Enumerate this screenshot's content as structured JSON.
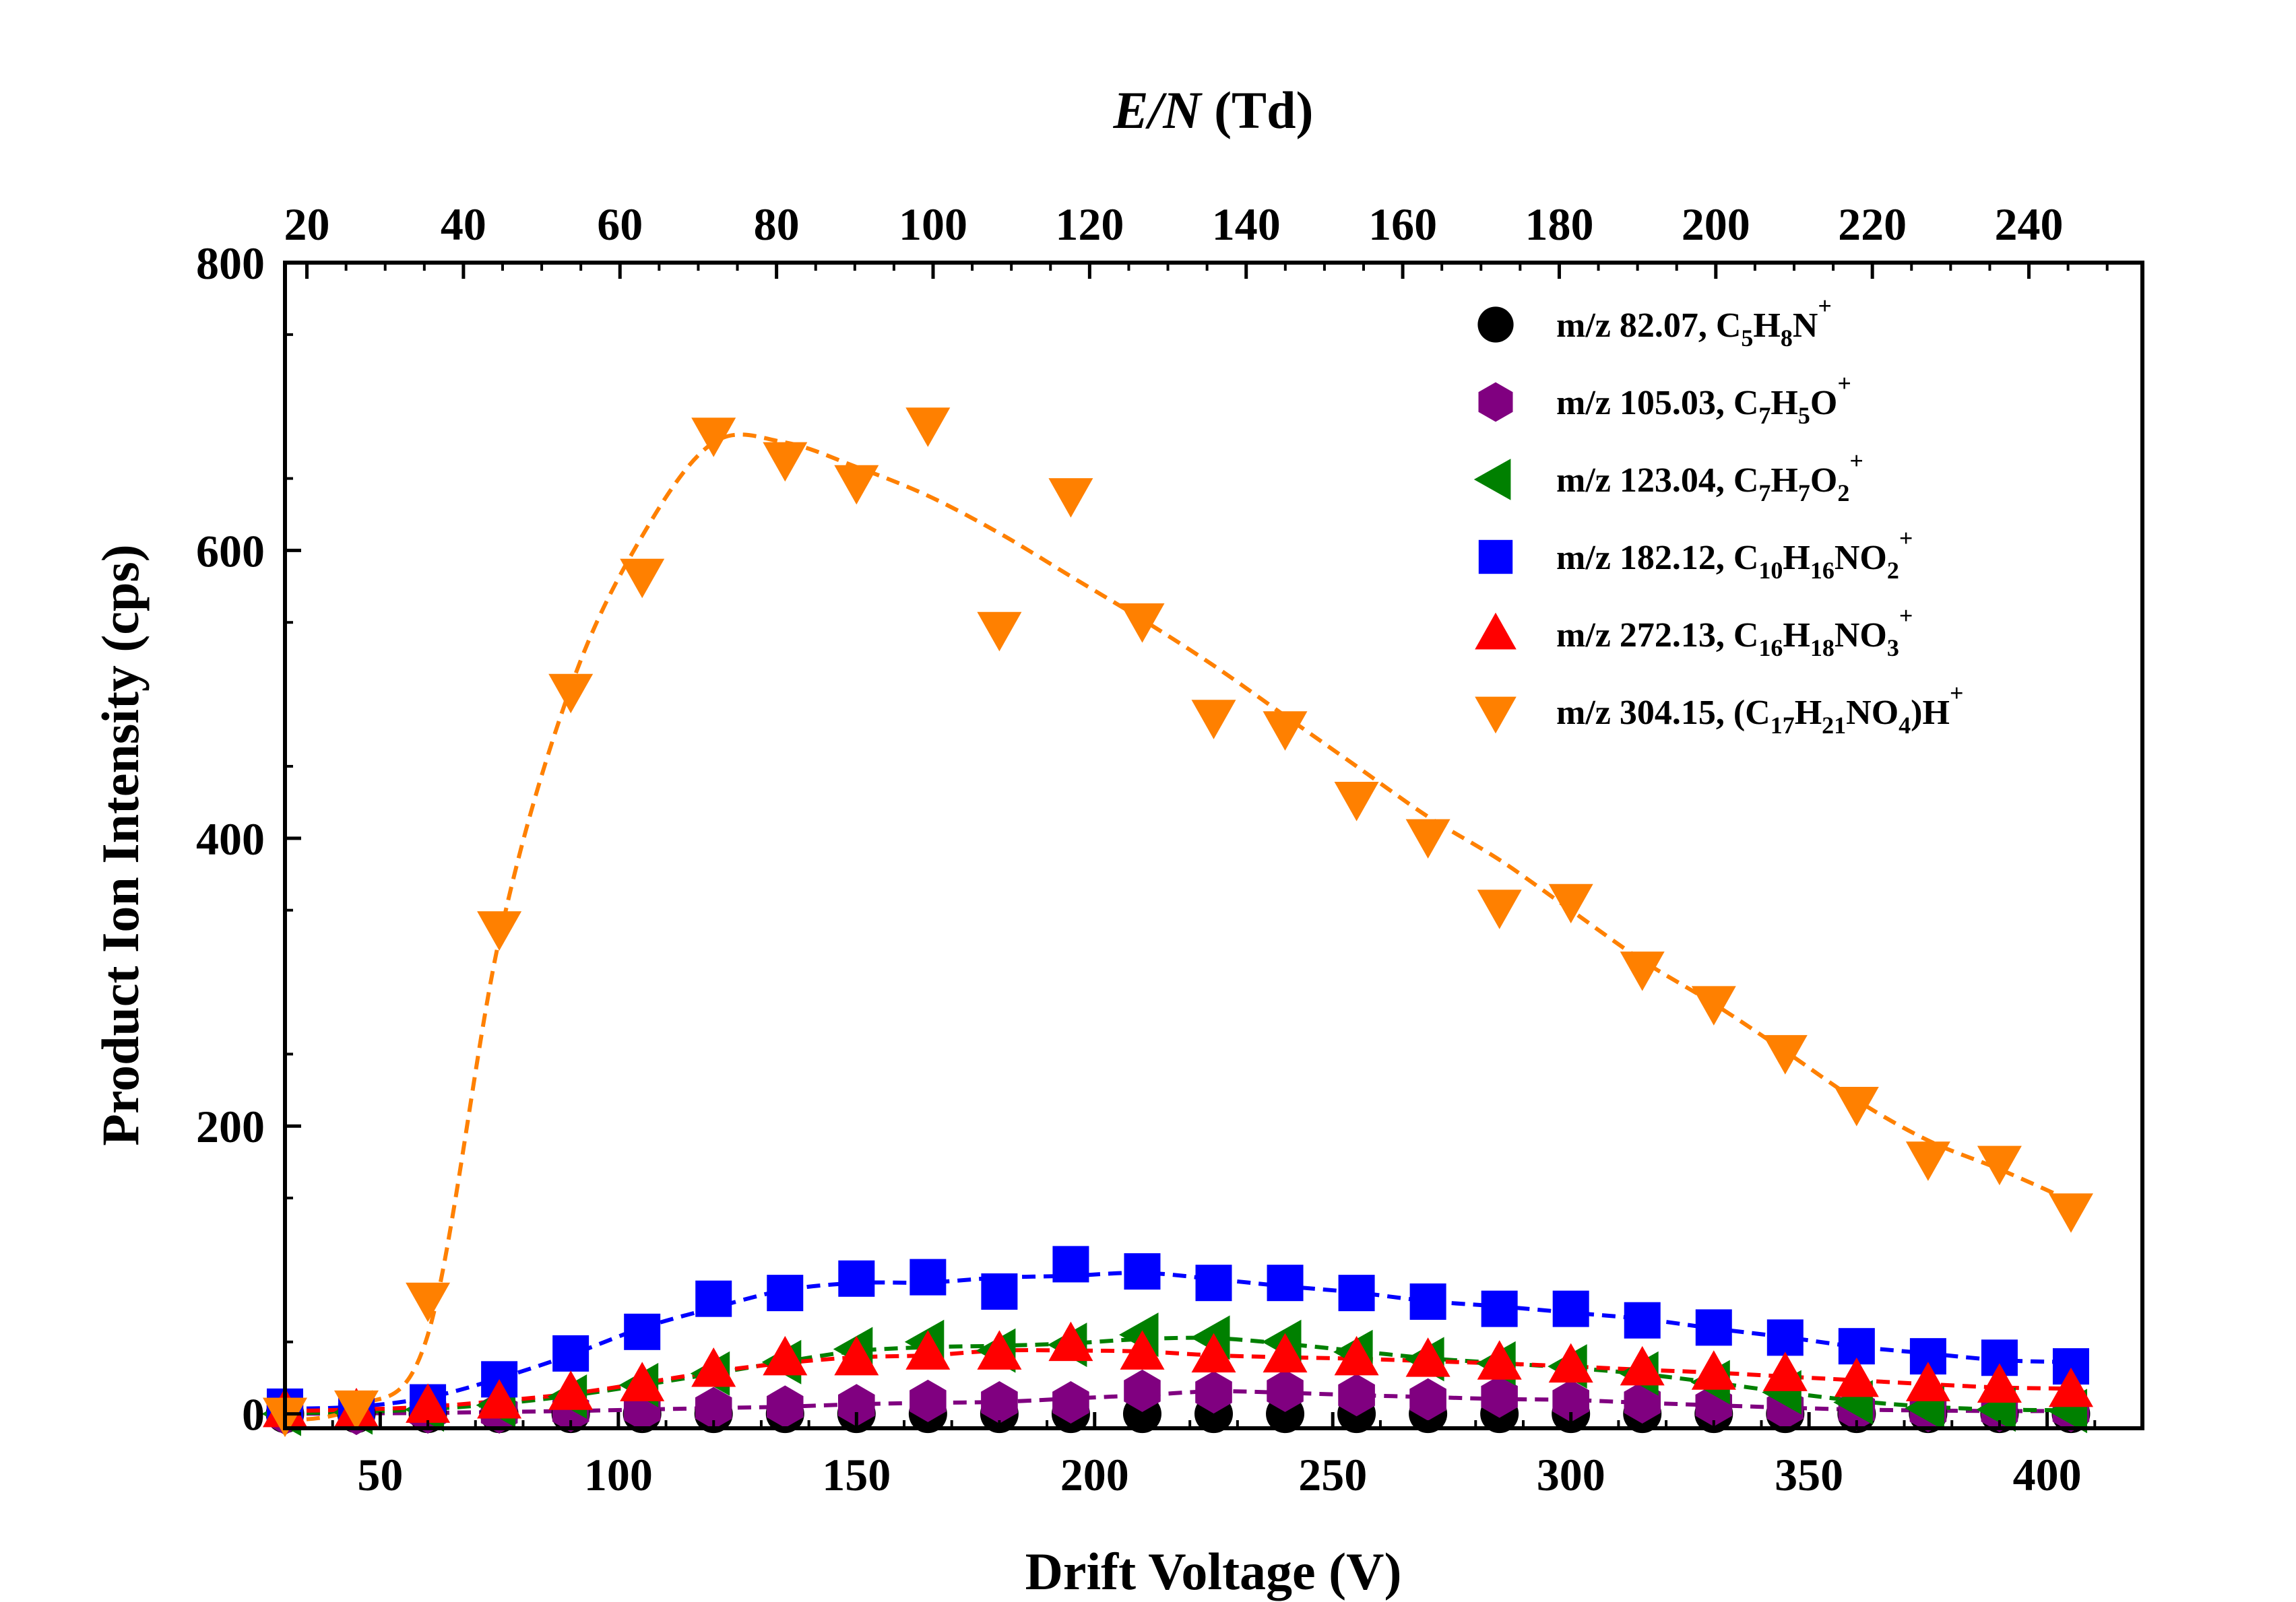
{
  "chart_data": {
    "type": "scatter",
    "xlabel": "Drift Voltage (V)",
    "ylabel": "Product Ion Intensity (cps)",
    "top_xlabel": {
      "italic": "E/N",
      "rest": " (Td)"
    },
    "xlim": [
      30,
      420
    ],
    "ylim": [
      -10,
      800
    ],
    "top_xlim": [
      17.2,
      254.5
    ],
    "xticks": [
      50,
      100,
      150,
      200,
      250,
      300,
      350,
      400
    ],
    "yticks": [
      0,
      200,
      400,
      600,
      800
    ],
    "top_xticks": [
      20,
      40,
      60,
      80,
      100,
      120,
      140,
      160,
      180,
      200,
      220,
      240
    ],
    "grid": false,
    "legend_position": "top-right",
    "x": [
      30,
      45,
      60,
      75,
      90,
      105,
      120,
      135,
      150,
      165,
      180,
      195,
      210,
      225,
      240,
      255,
      270,
      285,
      300,
      315,
      330,
      345,
      360,
      375,
      390,
      405
    ],
    "series": [
      {
        "name": "m/z 82.07, C5H8N+",
        "label_parts": [
          [
            "m/z 82.07, C",
            ""
          ],
          [
            "5",
            "sub"
          ],
          [
            "H",
            ""
          ],
          [
            "8",
            "sub"
          ],
          [
            "N",
            ""
          ],
          [
            "+",
            "sup"
          ]
        ],
        "color": "#000000",
        "marker": "circle",
        "values": [
          0,
          0,
          0,
          0,
          0,
          0,
          0,
          0,
          0,
          0,
          0,
          0,
          0,
          0,
          0,
          0,
          0,
          0,
          0,
          0,
          0,
          0,
          0,
          0,
          0,
          0
        ],
        "fit": false
      },
      {
        "name": "m/z 105.03, C7H5O+",
        "label_parts": [
          [
            "m/z 105.03, C",
            ""
          ],
          [
            "7",
            "sub"
          ],
          [
            "H",
            ""
          ],
          [
            "5",
            "sub"
          ],
          [
            "O",
            ""
          ],
          [
            "+",
            "sup"
          ]
        ],
        "color": "#800080",
        "marker": "hexagon",
        "values": [
          0,
          0,
          1,
          1,
          2,
          3,
          4,
          5,
          6,
          9,
          8,
          8,
          16,
          15,
          16,
          13,
          10,
          12,
          9,
          8,
          6,
          4,
          3,
          2,
          2,
          2
        ],
        "fit": true
      },
      {
        "name": "m/z 123.04, C7H7O2+",
        "label_parts": [
          [
            "m/z 123.04, C",
            ""
          ],
          [
            "7",
            "sub"
          ],
          [
            "H",
            ""
          ],
          [
            "7",
            "sub"
          ],
          [
            "O",
            ""
          ],
          [
            "2",
            "sub"
          ],
          [
            "+",
            "sup"
          ]
        ],
        "color": "#008000",
        "marker": "triangle-left",
        "values": [
          0,
          1,
          3,
          6,
          12,
          20,
          28,
          36,
          45,
          50,
          44,
          48,
          55,
          53,
          50,
          43,
          38,
          35,
          33,
          28,
          22,
          15,
          8,
          4,
          3,
          2
        ],
        "fit": true
      },
      {
        "name": "m/z 182.12, C10H16NO2+",
        "label_parts": [
          [
            "m/z 182.12, C",
            ""
          ],
          [
            "10",
            "sub"
          ],
          [
            "H",
            ""
          ],
          [
            "16",
            "sub"
          ],
          [
            "NO",
            ""
          ],
          [
            "2",
            "sub"
          ],
          [
            "+",
            "sup"
          ]
        ],
        "color": "#0000ff",
        "marker": "square",
        "values": [
          5,
          2,
          8,
          24,
          42,
          57,
          80,
          84,
          94,
          95,
          85,
          104,
          99,
          91,
          91,
          84,
          78,
          73,
          73,
          65,
          60,
          53,
          47,
          40,
          39,
          33
        ],
        "fit": true
      },
      {
        "name": "m/z 272.13, C16H18NO3+",
        "label_parts": [
          [
            "m/z 272.13, C",
            ""
          ],
          [
            "16",
            "sub"
          ],
          [
            "H",
            ""
          ],
          [
            "18",
            "sub"
          ],
          [
            "NO",
            ""
          ],
          [
            "3",
            "sub"
          ],
          [
            "+",
            "sup"
          ]
        ],
        "color": "#ff0000",
        "marker": "triangle-up",
        "values": [
          2,
          2,
          5,
          8,
          14,
          20,
          30,
          38,
          38,
          42,
          42,
          48,
          42,
          40,
          40,
          38,
          37,
          35,
          33,
          31,
          28,
          27,
          23,
          20,
          19,
          16
        ],
        "fit": true
      },
      {
        "name": "m/z 304.15, (C17H21NO4)H+",
        "label_parts": [
          [
            "m/z 304.15, (C",
            ""
          ],
          [
            "17",
            "sub"
          ],
          [
            "H",
            ""
          ],
          [
            "21",
            "sub"
          ],
          [
            "NO",
            ""
          ],
          [
            "4",
            "sub"
          ],
          [
            ")H",
            ""
          ],
          [
            "+",
            "sup"
          ]
        ],
        "color": "#ff8000",
        "marker": "triangle-down",
        "values": [
          0,
          5,
          80,
          338,
          503,
          583,
          681,
          664,
          648,
          688,
          546,
          639,
          552,
          485,
          477,
          428,
          402,
          353,
          357,
          310,
          286,
          252,
          216,
          178,
          175,
          142
        ],
        "fit_values": [
          -5,
          5,
          55,
          330,
          505,
          610,
          675,
          675,
          658,
          638,
          612,
          582,
          552,
          520,
          485,
          450,
          415,
          385,
          350,
          315,
          285,
          252,
          218,
          190,
          170,
          148
        ],
        "fit": true
      }
    ]
  }
}
